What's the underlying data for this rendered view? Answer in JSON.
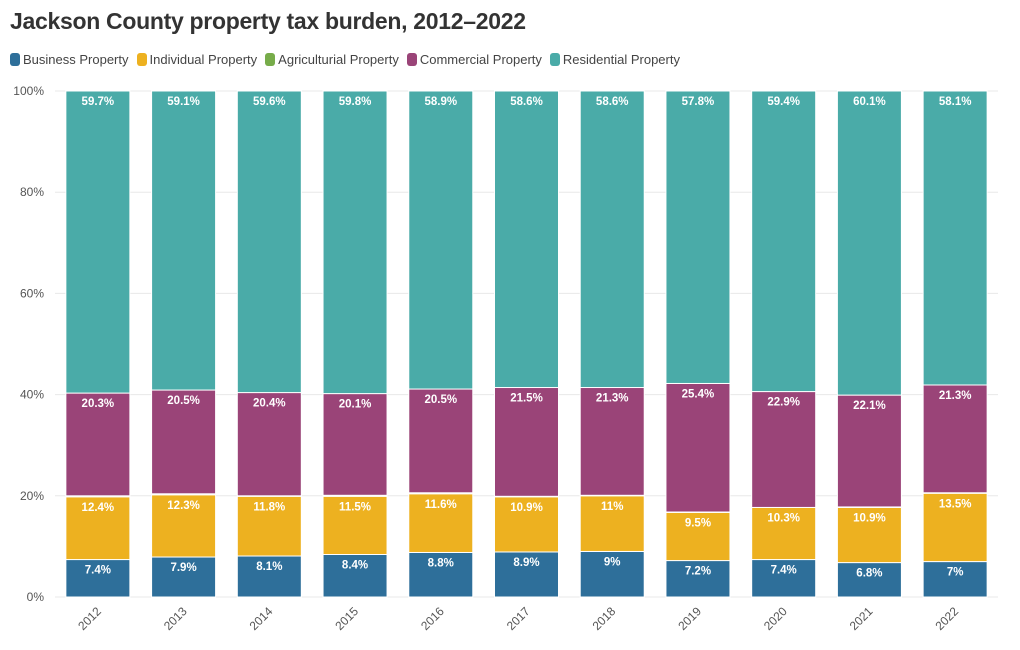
{
  "chart_data": {
    "type": "bar",
    "stacked": true,
    "title": "Jackson County property tax burden, 2012–2022",
    "xlabel": "",
    "ylabel": "",
    "ylim": [
      0,
      100
    ],
    "yticks": [
      "0%",
      "20%",
      "40%",
      "60%",
      "80%",
      "100%"
    ],
    "grid": true,
    "legend_position": "top-left",
    "categories": [
      "2012",
      "2013",
      "2014",
      "2015",
      "2016",
      "2017",
      "2018",
      "2019",
      "2020",
      "2021",
      "2022"
    ],
    "series": [
      {
        "name": "Business Property",
        "color": "#2e6f9a",
        "values": [
          7.4,
          7.9,
          8.1,
          8.4,
          8.8,
          8.9,
          9,
          7.2,
          7.4,
          6.8,
          7
        ],
        "labels": [
          "7.4%",
          "7.9%",
          "8.1%",
          "8.4%",
          "8.8%",
          "8.9%",
          "9%",
          "7.2%",
          "7.4%",
          "6.8%",
          "7%"
        ]
      },
      {
        "name": "Individual Property",
        "color": "#edb120",
        "values": [
          12.4,
          12.3,
          11.8,
          11.5,
          11.6,
          10.9,
          11,
          9.5,
          10.3,
          10.9,
          13.5
        ],
        "labels": [
          "12.4%",
          "12.3%",
          "11.8%",
          "11.5%",
          "11.6%",
          "10.9%",
          "11%",
          "9.5%",
          "10.3%",
          "10.9%",
          "13.5%"
        ]
      },
      {
        "name": "Agriculturial Property",
        "color": "#77ac4a",
        "values": [
          0.2,
          0.2,
          0.1,
          0.2,
          0.2,
          0.1,
          0.1,
          0.1,
          0,
          0.1,
          0.1
        ]
      },
      {
        "name": "Commercial Property",
        "color": "#9a4478",
        "values": [
          20.3,
          20.5,
          20.4,
          20.1,
          20.5,
          21.5,
          21.3,
          25.4,
          22.9,
          22.1,
          21.3
        ],
        "labels": [
          "20.3%",
          "20.5%",
          "20.4%",
          "20.1%",
          "20.5%",
          "21.5%",
          "21.3%",
          "25.4%",
          "22.9%",
          "22.1%",
          "21.3%"
        ]
      },
      {
        "name": "Residential Property",
        "color": "#4aaba8",
        "values": [
          59.7,
          59.1,
          59.6,
          59.8,
          58.9,
          58.6,
          58.6,
          57.8,
          59.4,
          60.1,
          58.1
        ],
        "labels": [
          "59.7%",
          "59.1%",
          "59.6%",
          "59.8%",
          "58.9%",
          "58.6%",
          "58.6%",
          "57.8%",
          "59.4%",
          "60.1%",
          "58.1%"
        ]
      }
    ]
  }
}
